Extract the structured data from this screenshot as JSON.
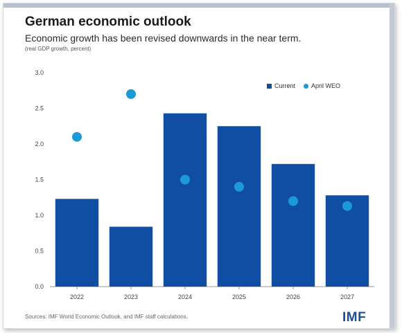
{
  "colors": {
    "bar": "#0f4ea3",
    "marker": "#1c9ad6",
    "logo": "#1d4f8f"
  },
  "header": {
    "title": "German economic outlook",
    "subtitle": "Economic growth has been revised downwards in the near term.",
    "unit_note": "(real GDP growth, percent)"
  },
  "footer": {
    "source": "Sources: IMF World Economic Outlook, and IMF staff calculations.",
    "logo_text": "IMF"
  },
  "chart_data": {
    "type": "bar",
    "title": "German economic outlook",
    "subtitle": "Economic growth has been revised downwards in the near term.",
    "ylabel": "(real GDP growth, percent)",
    "categories": [
      "2022",
      "2023",
      "2024",
      "2025",
      "2026",
      "2027"
    ],
    "ylim": [
      0,
      3.0
    ],
    "yticks": [
      0.0,
      0.5,
      1.0,
      1.5,
      2.0,
      2.5,
      3.0
    ],
    "ytick_labels": [
      "0.0",
      "0.5",
      "1.0",
      "1.5",
      "2.0",
      "2.5",
      "3.0"
    ],
    "grid": false,
    "legend_position": "top-right",
    "series": [
      {
        "name": "Current",
        "kind": "bar",
        "color": "#0f4ea3",
        "values": [
          1.23,
          0.84,
          2.43,
          2.25,
          1.72,
          1.28
        ]
      },
      {
        "name": "April WEO",
        "kind": "marker",
        "color": "#1c9ad6",
        "values": [
          2.1,
          2.7,
          1.5,
          1.4,
          1.2,
          1.13
        ]
      }
    ]
  }
}
